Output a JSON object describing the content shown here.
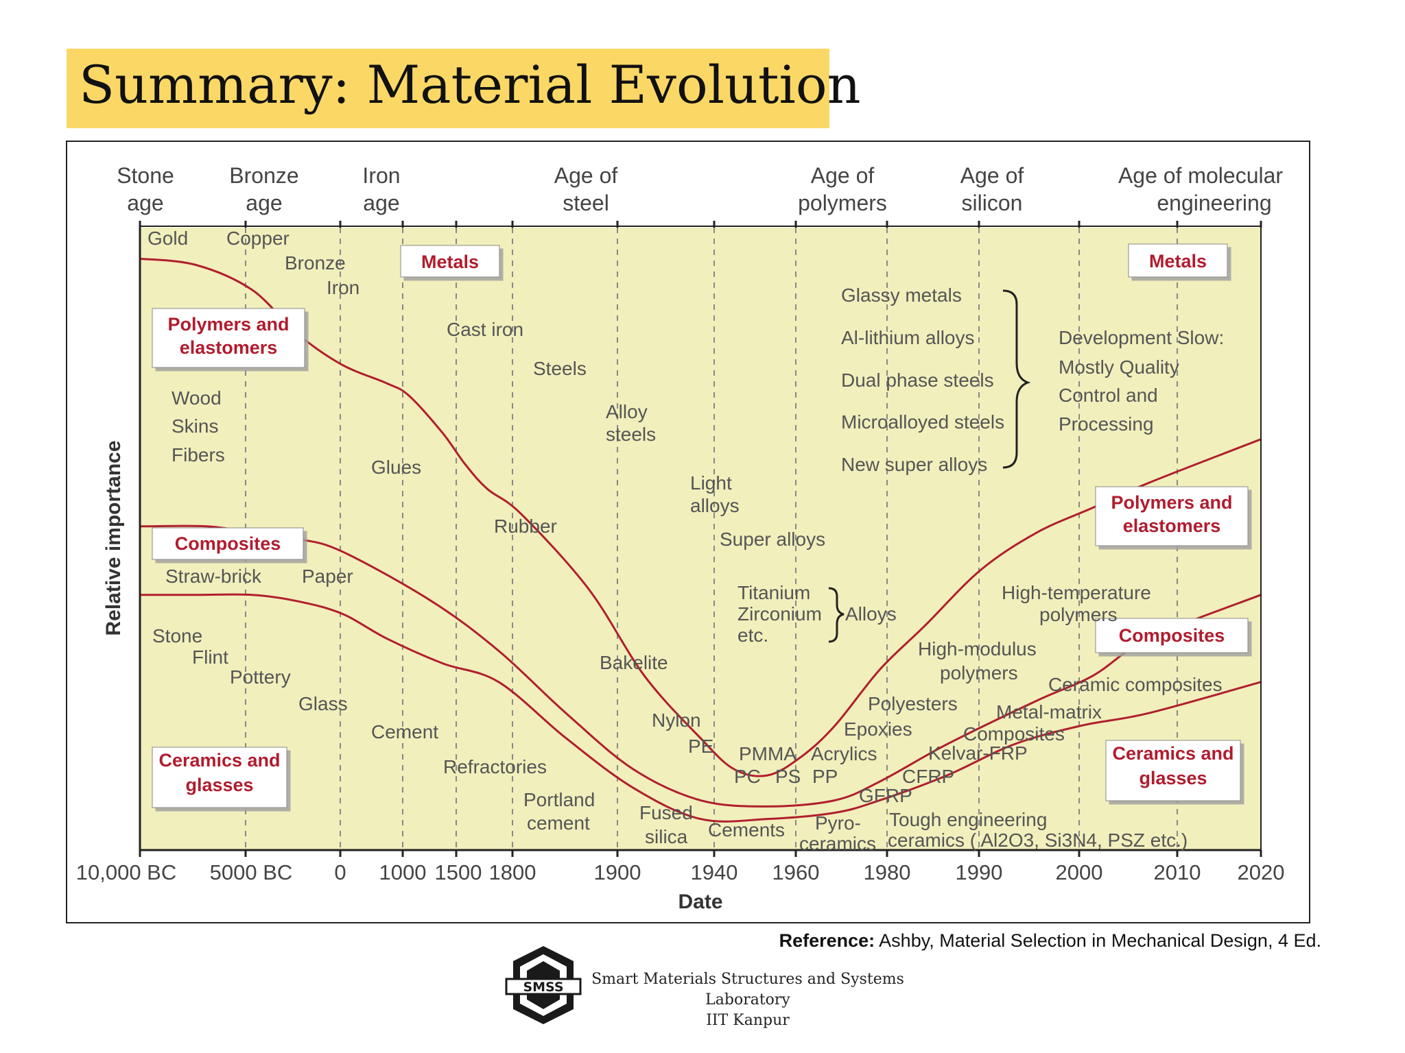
{
  "page": {
    "title": "Summary: Material Evolution",
    "reference_label": "Reference:",
    "reference_text": " Ashby, Material Selection in Mechanical Design, 4 Ed.",
    "logo_text": "SMSS",
    "lab_line1": "Smart Materials Structures and Systems",
    "lab_line2": "Laboratory",
    "lab_line3": "IIT Kanpur"
  },
  "chart_data": {
    "type": "area",
    "title": "",
    "xlabel": "Date",
    "ylabel": "Relative importance",
    "x_ticks": [
      "10,000 BC",
      "5000 BC",
      "0",
      "1000",
      "1500",
      "1800",
      "1900",
      "1940",
      "1960",
      "1980",
      "1990",
      "2000",
      "2010",
      "2020"
    ],
    "grid": "vertical dashed lines at date ticks",
    "colors": {
      "metals": "#fbe3c8",
      "polymers": "#cfdde0",
      "composites": "#bdd5a8",
      "ceramics": "#f1efbc",
      "boundary": "#b01f2e",
      "label_red": "#b01f2e",
      "title_bg": "#fbd866"
    },
    "ages": [
      {
        "l1": "Stone",
        "l2": "age"
      },
      {
        "l1": "Bronze",
        "l2": "age"
      },
      {
        "l1": "Iron",
        "l2": "age"
      },
      {
        "l1": "Age of",
        "l2": "steel"
      },
      {
        "l1": "Age of",
        "l2": "polymers"
      },
      {
        "l1": "Age of",
        "l2": "silicon"
      },
      {
        "l1": "Age of molecular",
        "l2": "engineering"
      }
    ],
    "series": [
      {
        "name": "Metals",
        "boundary_top": [
          [
            0,
            0.95
          ],
          [
            0.05,
            0.94
          ],
          [
            0.1,
            0.9
          ],
          [
            0.14,
            0.83
          ],
          [
            0.18,
            0.78
          ],
          [
            0.22,
            0.75
          ],
          [
            0.24,
            0.73
          ],
          [
            0.27,
            0.67
          ],
          [
            0.29,
            0.62
          ],
          [
            0.31,
            0.58
          ],
          [
            0.34,
            0.54
          ],
          [
            0.4,
            0.42
          ],
          [
            0.45,
            0.28
          ],
          [
            0.5,
            0.18
          ],
          [
            0.53,
            0.13
          ],
          [
            0.56,
            0.12
          ],
          [
            0.59,
            0.15
          ],
          [
            0.62,
            0.2
          ],
          [
            0.66,
            0.29
          ],
          [
            0.7,
            0.36
          ],
          [
            0.75,
            0.45
          ],
          [
            0.8,
            0.51
          ],
          [
            0.85,
            0.55
          ],
          [
            0.9,
            0.59
          ],
          [
            1.0,
            0.66
          ]
        ]
      },
      {
        "name": "Polymers and elastomers",
        "boundary_top": [
          [
            0,
            0.52
          ],
          [
            0.06,
            0.52
          ],
          [
            0.1,
            0.51
          ],
          [
            0.14,
            0.5
          ],
          [
            0.18,
            0.48
          ],
          [
            0.26,
            0.4
          ],
          [
            0.32,
            0.32
          ],
          [
            0.38,
            0.22
          ],
          [
            0.44,
            0.13
          ],
          [
            0.5,
            0.08
          ],
          [
            0.56,
            0.07
          ],
          [
            0.62,
            0.08
          ],
          [
            0.66,
            0.11
          ],
          [
            0.72,
            0.17
          ],
          [
            0.8,
            0.24
          ],
          [
            0.85,
            0.28
          ],
          [
            0.9,
            0.34
          ],
          [
            1.0,
            0.41
          ]
        ]
      },
      {
        "name": "Composites",
        "boundary_top": [
          [
            0,
            0.41
          ],
          [
            0.05,
            0.41
          ],
          [
            0.1,
            0.41
          ],
          [
            0.14,
            0.4
          ],
          [
            0.18,
            0.38
          ],
          [
            0.22,
            0.34
          ],
          [
            0.27,
            0.3
          ],
          [
            0.32,
            0.27
          ],
          [
            0.38,
            0.18
          ],
          [
            0.44,
            0.1
          ],
          [
            0.5,
            0.05
          ],
          [
            0.56,
            0.05
          ],
          [
            0.62,
            0.06
          ],
          [
            0.66,
            0.08
          ],
          [
            0.72,
            0.12
          ],
          [
            0.78,
            0.17
          ],
          [
            0.84,
            0.2
          ],
          [
            0.9,
            0.22
          ],
          [
            1.0,
            0.27
          ]
        ]
      },
      {
        "name": "Ceramics and glasses",
        "boundary_top": [
          [
            0,
            0.0
          ],
          [
            1.0,
            0.0
          ]
        ]
      }
    ],
    "annotations": {
      "box_labels": [
        {
          "text": "Metals",
          "pos": "top-left"
        },
        {
          "text": "Metals",
          "pos": "top-right"
        },
        {
          "text": "Polymers and elastomers",
          "pos": "left"
        },
        {
          "text": "Polymers and elastomers",
          "pos": "right"
        },
        {
          "text": "Composites",
          "pos": "left"
        },
        {
          "text": "Composites",
          "pos": "right"
        },
        {
          "text": "Ceramics and glasses",
          "pos": "bottom-left"
        },
        {
          "text": "Ceramics and glasses",
          "pos": "bottom-right"
        }
      ],
      "metals_text": [
        "Gold",
        "Copper",
        "Bronze",
        "Iron",
        "Cast iron",
        "Steels",
        "Alloy steels",
        "Light alloys",
        "Super alloys",
        "Titanium",
        "Zirconium",
        "etc.",
        "Alloys",
        "Glassy metals",
        "Al-lithium alloys",
        "Dual phase steels",
        "Microalloyed steels",
        "New super alloys",
        "Development Slow:",
        "Mostly Quality",
        "Control and",
        "Processing"
      ],
      "polymers_text": [
        "Wood",
        "Skins",
        "Fibers",
        "Glues",
        "Rubber",
        "Bakelite",
        "Nylon",
        "PE",
        "PMMA",
        "PC",
        "PS",
        "Acrylics",
        "PP",
        "Polyesters",
        "Epoxies",
        "High-modulus polymers",
        "High-temperature polymers"
      ],
      "composites_text": [
        "Straw-brick",
        "Paper",
        "Kelvar-FRP",
        "CFRP",
        "GFRP",
        "Metal-matrix Composites",
        "Ceramic composites"
      ],
      "ceramics_text": [
        "Stone",
        "Flint",
        "Pottery",
        "Glass",
        "Cement",
        "Refractories",
        "Portland cement",
        "Fused silica",
        "Cements",
        "Pyro-ceramics",
        "Tough engineering",
        "ceramics ( Al2O3, Si3N4, PSZ etc.)"
      ]
    }
  }
}
